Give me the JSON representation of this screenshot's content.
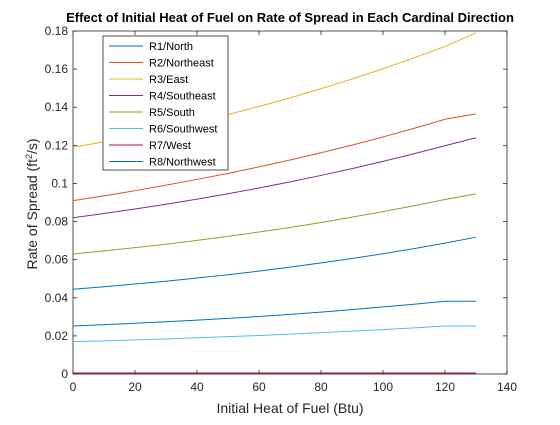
{
  "chart_data": {
    "type": "line",
    "title": "Effect of Initial Heat of Fuel on Rate of Spread in Each Cardinal Direction",
    "xlabel": "Initial Heat of Fuel (Btu)",
    "ylabel_main": "Rate of Spread (ft",
    "ylabel_sup": "2",
    "ylabel_tail": "/s)",
    "xlim": [
      0,
      140
    ],
    "ylim": [
      0,
      0.18
    ],
    "xticks": [
      0,
      20,
      40,
      60,
      80,
      100,
      120,
      140
    ],
    "yticks": [
      0,
      0.02,
      0.04,
      0.06,
      0.08,
      0.1,
      0.12,
      0.14,
      0.16,
      0.18
    ],
    "xtick_labels": [
      "0",
      "20",
      "40",
      "60",
      "80",
      "100",
      "120",
      "140"
    ],
    "ytick_labels": [
      "0",
      "0.02",
      "0.04",
      "0.06",
      "0.08",
      "0.1",
      "0.12",
      "0.14",
      "0.16",
      "0.18"
    ],
    "grid": false,
    "legend_position": "top-left",
    "x": [
      0,
      10,
      20,
      30,
      40,
      50,
      60,
      70,
      80,
      90,
      100,
      110,
      120,
      130
    ],
    "series": [
      {
        "name": "R1/North",
        "color": "#0072BD",
        "values": [
          0.0445,
          0.0458,
          0.0472,
          0.0487,
          0.0504,
          0.0521,
          0.054,
          0.0561,
          0.0583,
          0.0606,
          0.0631,
          0.0658,
          0.0687,
          0.0718
        ]
      },
      {
        "name": "R2/Northeast",
        "color": "#D95319",
        "values": [
          0.091,
          0.0935,
          0.0962,
          0.0991,
          0.1021,
          0.1053,
          0.1087,
          0.1123,
          0.1161,
          0.1201,
          0.1244,
          0.1289,
          0.1337,
          0.1365
        ]
      },
      {
        "name": "R3/East",
        "color": "#EDB120",
        "values": [
          0.119,
          0.1218,
          0.125,
          0.1285,
          0.1322,
          0.1362,
          0.1404,
          0.1449,
          0.1497,
          0.1548,
          0.1602,
          0.1659,
          0.1719,
          0.179
        ]
      },
      {
        "name": "R4/Southeast",
        "color": "#7E2F8E",
        "values": [
          0.082,
          0.0842,
          0.0866,
          0.0891,
          0.0918,
          0.0946,
          0.0976,
          0.1008,
          0.1042,
          0.1078,
          0.1116,
          0.1156,
          0.1198,
          0.124
        ]
      },
      {
        "name": "R5/South",
        "color": "#77AC30",
        "values": [
          0.063,
          0.0646,
          0.0663,
          0.0681,
          0.0701,
          0.0722,
          0.0745,
          0.0769,
          0.0795,
          0.0823,
          0.0852,
          0.0883,
          0.0916,
          0.0945
        ]
      },
      {
        "name": "R6/Southwest",
        "color": "#4DBEEE",
        "values": [
          0.017,
          0.0174,
          0.0179,
          0.0184,
          0.019,
          0.0196,
          0.0202,
          0.0209,
          0.0217,
          0.0225,
          0.0233,
          0.0242,
          0.0252,
          0.0252
        ]
      },
      {
        "name": "R7/West",
        "color": "#A2142F",
        "values": [
          0.0005,
          0.0005,
          0.0005,
          0.0005,
          0.0005,
          0.0005,
          0.0005,
          0.0005,
          0.0005,
          0.0005,
          0.0005,
          0.0005,
          0.0005,
          0.0005
        ]
      },
      {
        "name": "R8/Northwest",
        "color": "#0072BD",
        "values": [
          0.0252,
          0.0259,
          0.0266,
          0.0274,
          0.0283,
          0.0292,
          0.0302,
          0.0313,
          0.0325,
          0.0338,
          0.0352,
          0.0366,
          0.0382,
          0.0382
        ]
      }
    ]
  }
}
